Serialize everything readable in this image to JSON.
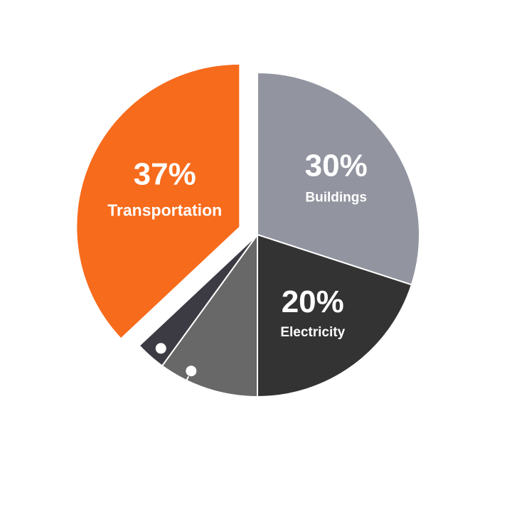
{
  "chart_data": {
    "type": "pie",
    "slices": [
      {
        "label": "Buildings",
        "value": 30,
        "value_label": "30%",
        "color": "#9295a0",
        "exploded": false
      },
      {
        "label": "Electricity",
        "value": 20,
        "value_label": "20%",
        "color": "#333333",
        "exploded": false
      },
      {
        "label": "",
        "value": 10,
        "value_label": "",
        "color": "#686868",
        "exploded": false,
        "marker": true
      },
      {
        "label": "",
        "value": 3,
        "value_label": "",
        "color": "#3c3b43",
        "exploded": false,
        "marker": true
      },
      {
        "label": "Transportation",
        "value": 37,
        "value_label": "37%",
        "color": "#f76b1c",
        "exploded": true
      }
    ],
    "start": "12 o'clock",
    "direction": "clockwise",
    "legend": "none",
    "background": "#ffffff"
  }
}
